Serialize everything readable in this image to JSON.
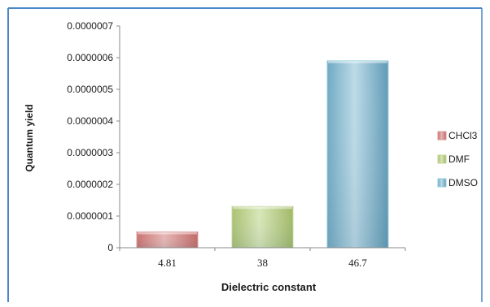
{
  "chart_data": {
    "type": "bar",
    "categories": [
      "4.81",
      "38",
      "46.7"
    ],
    "series": [
      {
        "name": "CHCl3",
        "values": [
          5e-08,
          null,
          null
        ]
      },
      {
        "name": "DMF",
        "values": [
          null,
          1.3e-07,
          null
        ]
      },
      {
        "name": "DMSO",
        "values": [
          null,
          null,
          5.9e-07
        ]
      }
    ],
    "xlabel": "Dielectric constant",
    "ylabel": "Quantum yield",
    "ylim": [
      0,
      7e-07
    ],
    "yticks": [
      "0",
      "0.0000001",
      "0.0000002",
      "0.0000003",
      "0.0000004",
      "0.0000005",
      "0.0000006",
      "0.0000007"
    ],
    "legend_position": "right",
    "colors": {
      "CHCl3": "#d99694",
      "DMF": "#c3d69b",
      "DMSO": "#93cddd",
      "frame_border": "#4a86c8"
    }
  }
}
